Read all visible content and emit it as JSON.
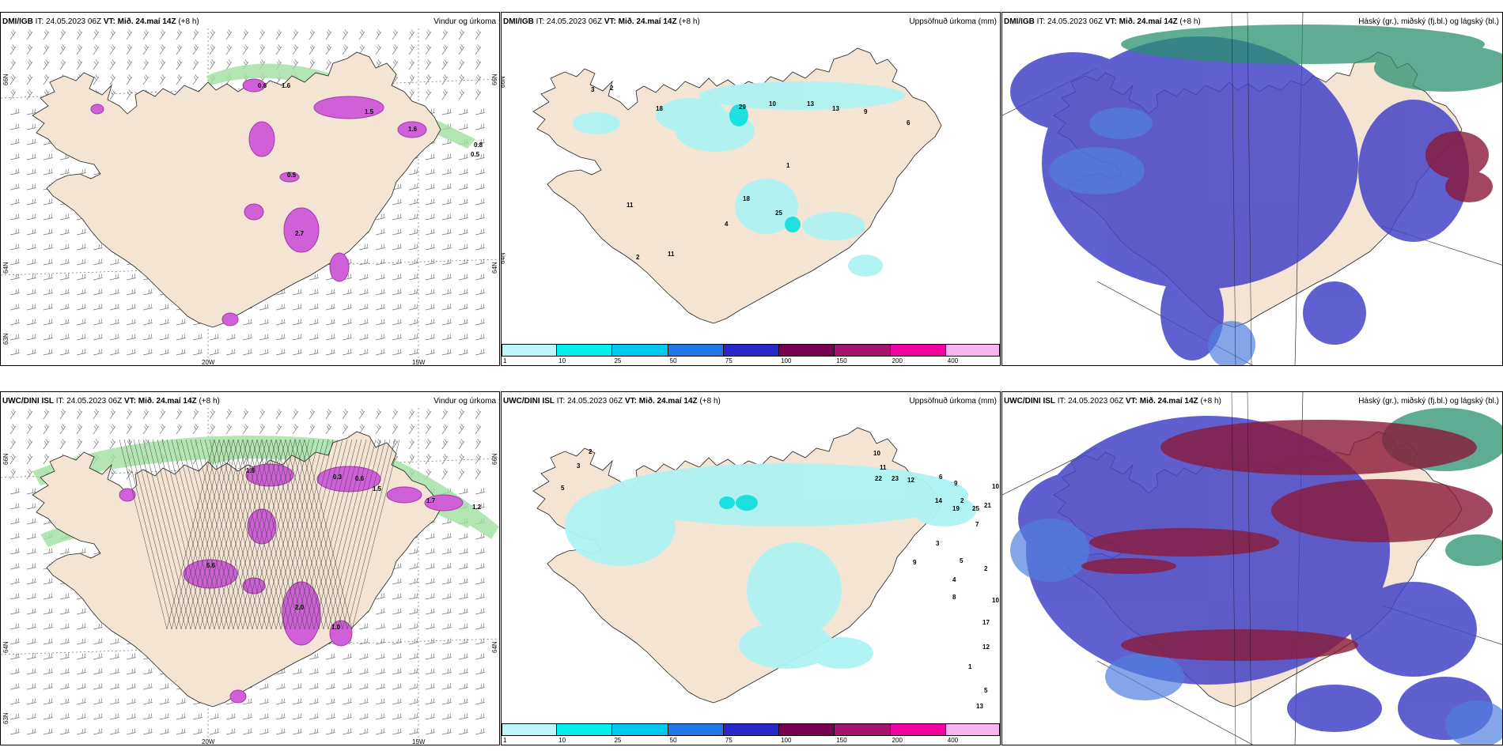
{
  "rows": [
    {
      "panels": [
        {
          "model": "DMI/IGB",
          "it_label": "IT:",
          "it": "24.05.2023 06Z",
          "vt_label": "VT:",
          "vt": "Mið. 24.maí 14Z",
          "lead": "(+8 h)",
          "title": "Vindur og úrkoma"
        },
        {
          "model": "DMI/IGB",
          "it_label": "IT:",
          "it": "24.05.2023 06Z",
          "vt_label": "VT:",
          "vt": "Mið. 24.maí 14Z",
          "lead": "(+8 h)",
          "title": "Uppsöfnuð úrkoma (mm)"
        },
        {
          "model": "DMI/IGB",
          "it_label": "IT:",
          "it": "24.05.2023 06Z",
          "vt_label": "VT:",
          "vt": "Mið. 24.maí 14Z",
          "lead": "(+8 h)",
          "title": "Háský (gr.), miðský (fj.bl.) og lágský (bl.)"
        }
      ]
    },
    {
      "panels": [
        {
          "model": "UWC/DINI ISL",
          "it_label": "IT:",
          "it": "24.05.2023 06Z",
          "vt_label": "VT:",
          "vt": "Mið. 24.maí 14Z",
          "lead": "(+8 h)",
          "title": "Vindur og úrkoma"
        },
        {
          "model": "UWC/DINI ISL",
          "it_label": "IT:",
          "it": "24.05.2023 06Z",
          "vt_label": "VT:",
          "vt": "Mið. 24.maí 14Z",
          "lead": "(+8 h)",
          "title": "Uppsöfnuð úrkoma (mm)"
        },
        {
          "model": "UWC/DINI ISL",
          "it_label": "IT:",
          "it": "24.05.2023 06Z",
          "vt_label": "VT:",
          "vt": "Mið. 24.maí 14Z",
          "lead": "(+8 h)",
          "title": "Háský (gr.), miðský (fj.bl.) og lágský (bl.)"
        }
      ]
    }
  ],
  "axis_labels": {
    "lon1": "20W",
    "lon2": "15W",
    "lat1": "66N",
    "lat2": "64N",
    "lat3": "63N"
  },
  "colorbar": {
    "ticks": [
      "1",
      "10",
      "25",
      "50",
      "75",
      "100",
      "150",
      "200",
      "400"
    ],
    "colors": [
      "#bdf7f7",
      "#00f0f0",
      "#00c8f0",
      "#1e78e6",
      "#2828c8",
      "#780050",
      "#a0146e",
      "#f000a0",
      "#f5b4f0"
    ]
  },
  "colors": {
    "land": "#f4e4d4",
    "precip": "#d060d8",
    "precip_dark": "#a43aa8",
    "green": "#a0e0a0",
    "low_cloud": "#4444c8",
    "mid_cloud": "#5080e0",
    "high_cloud": "#2a9070",
    "red_cloud": "#8a1a3a"
  },
  "precip_values_top": [
    "0.6",
    "1.6",
    "1.5",
    "1.6",
    "0.5",
    "2.7",
    "0.8",
    "0.5"
  ],
  "precip_values_bottom": [
    "1.6",
    "0.3",
    "0.6",
    "1.5",
    "1.7",
    "2.0",
    "1.0",
    "1.2",
    "5.6"
  ],
  "accum_top": [
    "3",
    "2",
    "18",
    "29",
    "10",
    "13",
    "13",
    "9",
    "6",
    "1",
    "11",
    "18",
    "25",
    "4",
    "11",
    "2"
  ],
  "accum_bottom": [
    "2",
    "3",
    "5",
    "10",
    "11",
    "22",
    "23",
    "12",
    "6",
    "9",
    "10",
    "2",
    "14",
    "19",
    "25",
    "21",
    "7",
    "3",
    "5",
    "9",
    "2",
    "4",
    "8",
    "10",
    "17",
    "12",
    "1",
    "5",
    "13"
  ]
}
